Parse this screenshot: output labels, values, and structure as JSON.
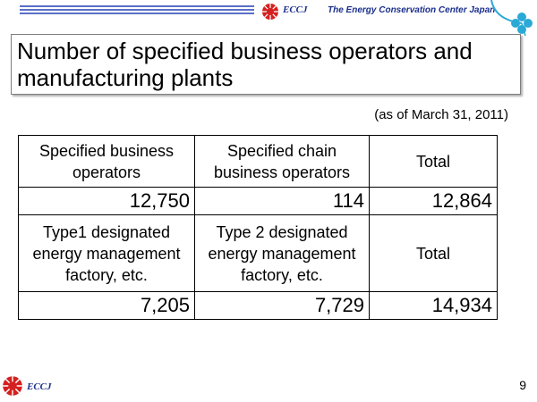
{
  "header": {
    "brand": "ECCJ",
    "org_name": "The Energy Conservation Center Japan",
    "logo_icon": "sun-logo-icon",
    "decoration_icon": "clover-icon",
    "accent_color": "#1a2f8c",
    "line_color": "#5a6fc8"
  },
  "slide": {
    "title_line1": "Number of specified business operators and",
    "title_line2": "manufacturing plants",
    "as_of": "(as of March 31, 2011)"
  },
  "table": {
    "row1_headers": [
      [
        "Specified business",
        "operators"
      ],
      [
        "Specified chain",
        "business operators"
      ],
      [
        "Total"
      ]
    ],
    "row1_values": [
      "12,750",
      "114",
      "12,864"
    ],
    "row2_headers": [
      [
        "Type1 designated",
        "energy management",
        "factory, etc."
      ],
      [
        "Type 2 designated",
        "energy management",
        "factory, etc."
      ],
      [
        "Total"
      ]
    ],
    "row2_values": [
      "7,205",
      "7,729",
      "14,934"
    ]
  },
  "footer": {
    "brand": "ECCJ",
    "page_number": "9"
  }
}
